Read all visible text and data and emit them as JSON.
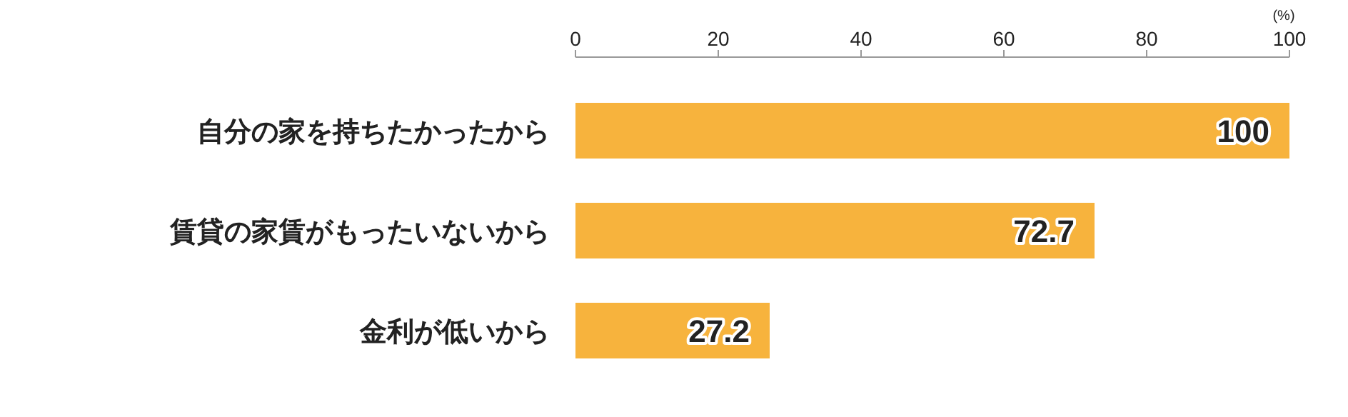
{
  "chart_data": {
    "type": "bar",
    "orientation": "horizontal",
    "categories": [
      "自分の家を持ちたかったから",
      "賃貸の家賃がもったいないから",
      "金利が低いから"
    ],
    "values": [
      100,
      72.7,
      27.2
    ],
    "color": "#f7b33d",
    "xlim": [
      0,
      100
    ],
    "xticks": [
      0,
      20,
      40,
      60,
      80,
      100
    ],
    "xlabel": "(%)",
    "data_labels": true
  }
}
